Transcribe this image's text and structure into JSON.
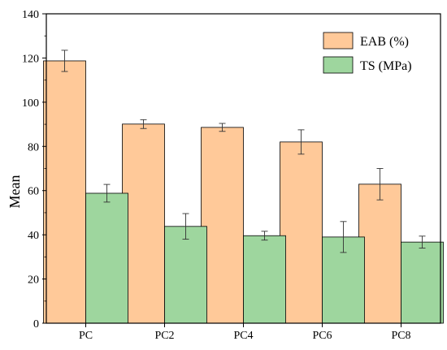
{
  "chart_data": {
    "type": "bar",
    "ylabel": "Mean",
    "xlabel": "",
    "ylim": [
      0,
      140
    ],
    "yticks": [
      0,
      20,
      40,
      60,
      80,
      100,
      120,
      140
    ],
    "categories": [
      "PC",
      "PC2",
      "PC4",
      "PC6",
      "PC8"
    ],
    "legend_position": "top-right",
    "series": [
      {
        "name": "EAB (%)",
        "color": "#FFC999",
        "values": [
          118.7,
          90.1,
          88.6,
          82.0,
          62.9
        ],
        "errors": [
          4.8,
          2.0,
          1.8,
          5.5,
          7.1
        ]
      },
      {
        "name": "TS (MPa)",
        "color": "#9ED69E",
        "values": [
          58.8,
          43.8,
          39.6,
          39.0,
          36.7
        ],
        "errors": [
          4.0,
          5.8,
          2.0,
          7.0,
          2.7
        ]
      }
    ]
  }
}
